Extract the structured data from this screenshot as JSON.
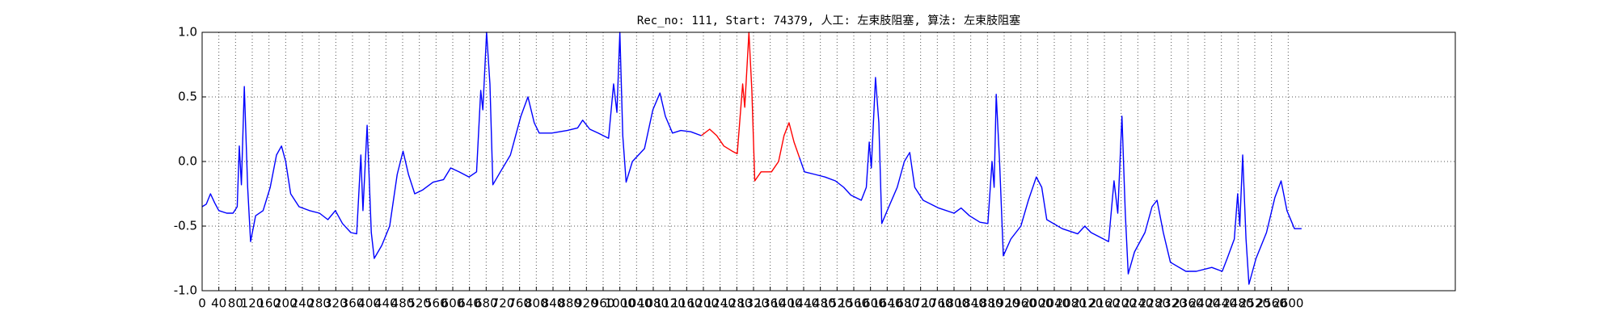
{
  "chart_data": {
    "type": "line",
    "title": "Rec_no: 111, Start: 74379, 人工: 左束肢阻塞, 算法: 左束肢阻塞",
    "xlim": [
      0,
      3000
    ],
    "ylim": [
      -1,
      1
    ],
    "xticks": [
      0,
      40,
      80,
      120,
      160,
      200,
      240,
      280,
      320,
      360,
      400,
      440,
      480,
      520,
      560,
      600,
      640,
      680,
      720,
      760,
      800,
      840,
      880,
      920,
      960,
      1000,
      1040,
      1080,
      1120,
      1160,
      1200,
      1240,
      1280,
      1320,
      1360,
      1400,
      1440,
      1480,
      1520,
      1560,
      1600,
      1640,
      1680,
      1720,
      1760,
      1800,
      1840,
      1880,
      1920,
      1960,
      2000,
      2040,
      2080,
      2120,
      2160,
      2200,
      2240,
      2280,
      2320,
      2360,
      2400,
      2440,
      2480,
      2520,
      2560,
      2600
    ],
    "yticks": [
      {
        "value": -1,
        "label": "-1.0"
      },
      -0.5,
      {
        "value": 0,
        "label": "0.0"
      },
      0.5,
      {
        "value": 1,
        "label": "1.0"
      }
    ],
    "grid": true,
    "series": [
      {
        "color": "#0000ff",
        "x": [
          0,
          10,
          20,
          30,
          40,
          59,
          74,
          84,
          89,
          94,
          101,
          109,
          116,
          128,
          146,
          163,
          178,
          190,
          200,
          212,
          232,
          257,
          281,
          301,
          319,
          336,
          356,
          370,
          380,
          385,
          395,
          405,
          412,
          430,
          449,
          467,
          481,
          494,
          509,
          528,
          553,
          578,
          595,
          615,
          639,
          657,
          667,
          672,
          681,
          689,
          696,
          714,
          738,
          763,
          780,
          795,
          807,
          837,
          874,
          899,
          911,
          928,
          948,
          973,
          985,
          993,
          1000,
          1007,
          1015,
          1030,
          1059,
          1079,
          1096,
          1109,
          1126,
          1146,
          1170,
          1195
        ],
        "values": [
          -0.35,
          -0.33,
          -0.25,
          -0.32,
          -0.38,
          -0.4,
          -0.4,
          -0.35,
          0.12,
          -0.18,
          0.58,
          -0.2,
          -0.62,
          -0.42,
          -0.38,
          -0.2,
          0.05,
          0.12,
          0.0,
          -0.25,
          -0.35,
          -0.38,
          -0.4,
          -0.45,
          -0.38,
          -0.48,
          -0.55,
          -0.56,
          0.05,
          -0.38,
          0.28,
          -0.55,
          -0.75,
          -0.65,
          -0.5,
          -0.1,
          0.08,
          -0.1,
          -0.25,
          -0.22,
          -0.16,
          -0.14,
          -0.05,
          -0.08,
          -0.12,
          -0.08,
          0.55,
          0.4,
          1.0,
          0.6,
          -0.18,
          -0.08,
          0.05,
          0.35,
          0.5,
          0.3,
          0.22,
          0.22,
          0.24,
          0.26,
          0.32,
          0.25,
          0.22,
          0.18,
          0.6,
          0.38,
          1.0,
          0.2,
          -0.16,
          0.0,
          0.1,
          0.4,
          0.53,
          0.35,
          0.22,
          0.24,
          0.23,
          0.2
        ]
      },
      {
        "color": "#ff0000",
        "x": [
          1195,
          1215,
          1232,
          1249,
          1269,
          1281,
          1294,
          1299,
          1309,
          1316,
          1323,
          1338,
          1363,
          1380,
          1393,
          1405,
          1417,
          1430
        ],
        "values": [
          0.2,
          0.25,
          0.2,
          0.12,
          0.08,
          0.06,
          0.6,
          0.42,
          1.0,
          0.55,
          -0.15,
          -0.08,
          -0.08,
          0.0,
          0.2,
          0.3,
          0.15,
          0.03
        ]
      },
      {
        "color": "#0000ff",
        "x": [
          1430,
          1442,
          1467,
          1491,
          1516,
          1536,
          1553,
          1578,
          1590,
          1597,
          1602,
          1612,
          1620,
          1627,
          1644,
          1664,
          1681,
          1694,
          1706,
          1726,
          1763,
          1800,
          1817,
          1837,
          1862,
          1881,
          1891,
          1896,
          1901,
          1909,
          1918,
          1936,
          1960,
          1978,
          1997,
          2010,
          2022,
          2059,
          2096,
          2113,
          2128,
          2158,
          2170,
          2183,
          2192,
          2202,
          2210,
          2217,
          2232,
          2257,
          2274,
          2286,
          2301,
          2318,
          2355,
          2380,
          2417,
          2442,
          2454,
          2471,
          2479,
          2484,
          2491,
          2499,
          2506,
          2523,
          2548,
          2568,
          2583,
          2597,
          2615,
          2632
        ],
        "values": [
          0.03,
          -0.08,
          -0.1,
          -0.12,
          -0.15,
          -0.2,
          -0.26,
          -0.3,
          -0.2,
          0.15,
          -0.05,
          0.65,
          0.3,
          -0.48,
          -0.35,
          -0.2,
          0.0,
          0.07,
          -0.2,
          -0.3,
          -0.36,
          -0.4,
          -0.36,
          -0.42,
          -0.47,
          -0.48,
          0.0,
          -0.2,
          0.52,
          0.0,
          -0.73,
          -0.6,
          -0.5,
          -0.3,
          -0.12,
          -0.2,
          -0.45,
          -0.52,
          -0.56,
          -0.5,
          -0.55,
          -0.6,
          -0.62,
          -0.15,
          -0.4,
          0.35,
          -0.4,
          -0.87,
          -0.7,
          -0.55,
          -0.35,
          -0.3,
          -0.55,
          -0.78,
          -0.85,
          -0.85,
          -0.82,
          -0.85,
          -0.75,
          -0.6,
          -0.25,
          -0.5,
          0.05,
          -0.6,
          -0.95,
          -0.75,
          -0.55,
          -0.28,
          -0.15,
          -0.38,
          -0.52,
          -0.52
        ]
      }
    ]
  }
}
